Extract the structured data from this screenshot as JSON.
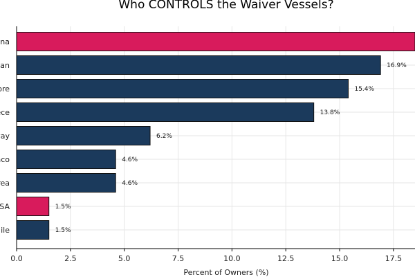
{
  "chart_data": {
    "type": "bar",
    "orientation": "horizontal",
    "title": "Who CONTROLS the Waiver Vessels?",
    "xlabel": "Percent of Owners (%)",
    "ylabel": "",
    "categories": [
      "ina",
      "pan",
      "ore",
      "ece",
      "way",
      "aco",
      "rea",
      "SA",
      "ile"
    ],
    "values": [
      18.5,
      16.9,
      15.4,
      13.8,
      6.2,
      4.6,
      4.6,
      1.5,
      1.5
    ],
    "data_labels": [
      "",
      "16.9%",
      "15.4%",
      "13.8%",
      "6.2%",
      "4.6%",
      "4.6%",
      "1.5%",
      "1.5%"
    ],
    "highlight": [
      true,
      false,
      false,
      false,
      false,
      false,
      false,
      true,
      false
    ],
    "xlim": [
      0,
      18.5
    ],
    "xticks": [
      0.0,
      2.5,
      5.0,
      7.5,
      10.0,
      12.5,
      15.0,
      17.5
    ],
    "xtick_labels": [
      "0.0",
      "2.5",
      "5.0",
      "7.5",
      "10.0",
      "12.5",
      "15.0",
      "17.5"
    ],
    "grid": true,
    "colors": {
      "default": "#1b3a5c",
      "highlight": "#d81b5c"
    }
  }
}
